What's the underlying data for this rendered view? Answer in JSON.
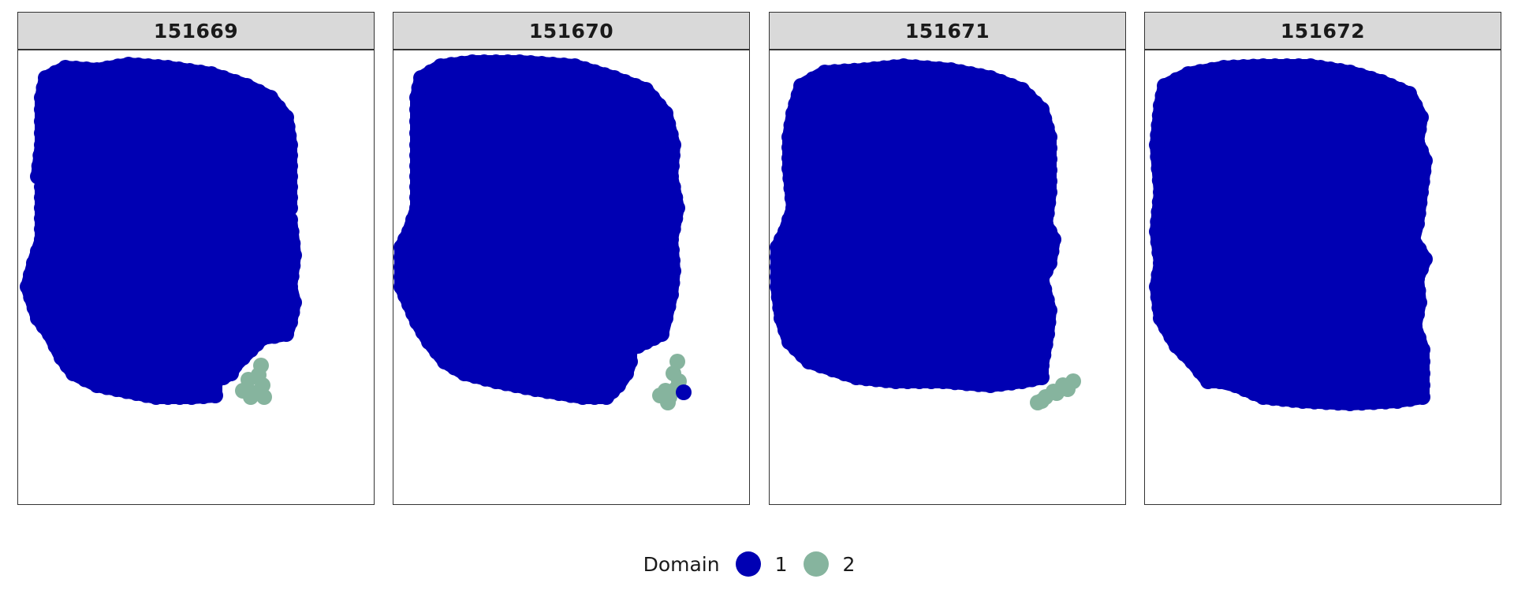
{
  "chart_data": {
    "type": "scatter",
    "facets": [
      {
        "label": "151669"
      },
      {
        "label": "151670"
      },
      {
        "label": "151671"
      },
      {
        "label": "151672"
      }
    ],
    "legend": {
      "title": "Domain",
      "position": "bottom",
      "items": [
        {
          "label": "1",
          "color": "#0000b3"
        },
        {
          "label": "2",
          "color": "#86b49e"
        }
      ]
    },
    "grid": false,
    "axes_visible": false
  }
}
